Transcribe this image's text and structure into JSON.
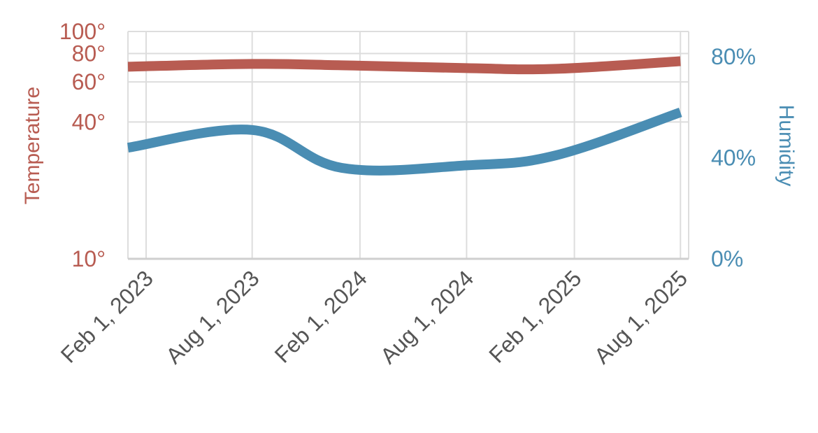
{
  "chart_data": {
    "type": "line",
    "x": [
      "2023-01-01",
      "2023-08-01",
      "2024-01-01",
      "2024-08-01",
      "2025-01-01",
      "2025-08-01"
    ],
    "series": [
      {
        "name": "Temperature",
        "axis": "left",
        "color": "#b85c52",
        "values": [
          70,
          72,
          71,
          69,
          68.5,
          74
        ]
      },
      {
        "name": "Humidity",
        "axis": "right",
        "color": "#4a8db3",
        "values": [
          44,
          51,
          36,
          37,
          41,
          58
        ]
      }
    ],
    "x_ticks": [
      {
        "date": "2023-02-01",
        "label": "Feb 1, 2023"
      },
      {
        "date": "2023-08-01",
        "label": "Aug 1, 2023"
      },
      {
        "date": "2024-02-01",
        "label": "Feb 1, 2024"
      },
      {
        "date": "2024-08-01",
        "label": "Aug 1, 2024"
      },
      {
        "date": "2025-02-01",
        "label": "Feb 1, 2025"
      },
      {
        "date": "2025-08-01",
        "label": "Aug 1, 2025"
      }
    ],
    "xlim": [
      "2023-01-01",
      "2025-08-15"
    ],
    "y_left": {
      "label": "Temperature",
      "scale": "log",
      "lim": [
        10,
        100
      ],
      "ticks": [
        {
          "value": 10,
          "label": "10°"
        },
        {
          "value": 40,
          "label": "40°"
        },
        {
          "value": 60,
          "label": "60°"
        },
        {
          "value": 80,
          "label": "80°"
        },
        {
          "value": 100,
          "label": "100°"
        }
      ],
      "color": "#b85c52"
    },
    "y_right": {
      "label": "Humidity",
      "scale": "linear",
      "lim": [
        0,
        90
      ],
      "ticks": [
        {
          "value": 0,
          "label": "0%"
        },
        {
          "value": 40,
          "label": "40%"
        },
        {
          "value": 80,
          "label": "80%"
        }
      ],
      "color": "#4a8db3"
    },
    "grid": true,
    "legend": "none",
    "x_tick_label_color": "#555555",
    "grid_color": "#dddddd"
  }
}
